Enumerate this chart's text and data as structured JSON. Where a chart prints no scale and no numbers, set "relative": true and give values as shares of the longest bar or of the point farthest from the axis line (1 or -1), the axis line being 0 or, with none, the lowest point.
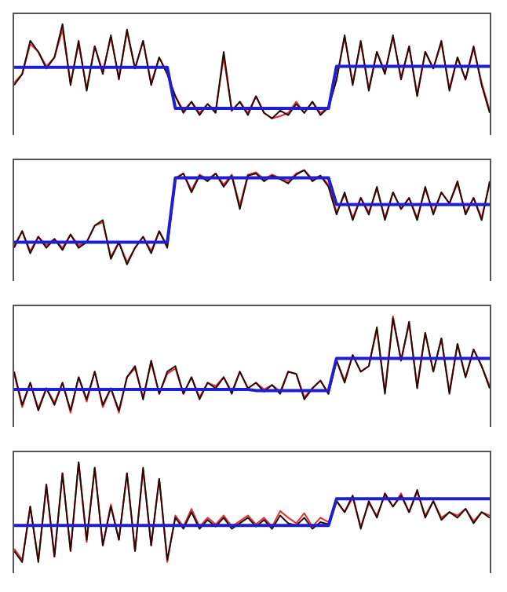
{
  "chart_data": [
    {
      "type": "line",
      "relative": true,
      "tick_labels": false,
      "marker": "none",
      "line_style": "solid",
      "categories": [
        null,
        null,
        null,
        null,
        null,
        null,
        null,
        null,
        null,
        null,
        null,
        null,
        null,
        null,
        null,
        null,
        null,
        null,
        null,
        null,
        null,
        null,
        null,
        null,
        null,
        null,
        null,
        null,
        null,
        null,
        null,
        null,
        null,
        null,
        null,
        null,
        null,
        null,
        null,
        null,
        null,
        null,
        null,
        null,
        null,
        null,
        null,
        null,
        null,
        null,
        null,
        null,
        null,
        null,
        null,
        null,
        null,
        null,
        null,
        null
      ],
      "series": [
        {
          "color": "#e03030",
          "values": [
            0.47,
            0.55,
            0.82,
            0.75,
            0.62,
            0.7,
            0.95,
            0.47,
            0.82,
            0.42,
            0.8,
            0.57,
            0.88,
            0.52,
            0.93,
            0.6,
            0.85,
            0.47,
            0.7,
            0.55,
            0.35,
            0.22,
            0.3,
            0.2,
            0.28,
            0.22,
            0.7,
            0.22,
            0.3,
            0.2,
            0.35,
            0.2,
            0.15,
            0.17,
            0.2,
            0.3,
            0.2,
            0.3,
            0.2,
            0.25,
            0.5,
            0.88,
            0.47,
            0.83,
            0.42,
            0.75,
            0.57,
            0.88,
            0.52,
            0.8,
            0.37,
            0.75,
            0.6,
            0.83,
            0.42,
            0.7,
            0.5,
            0.78,
            0.47,
            0.22
          ]
        },
        {
          "color": "#2a0808",
          "values": [
            0.45,
            0.55,
            0.85,
            0.75,
            0.6,
            0.7,
            1.0,
            0.45,
            0.85,
            0.4,
            0.8,
            0.55,
            0.9,
            0.5,
            0.95,
            0.6,
            0.85,
            0.45,
            0.7,
            0.55,
            0.35,
            0.2,
            0.3,
            0.18,
            0.28,
            0.2,
            0.75,
            0.22,
            0.3,
            0.18,
            0.35,
            0.2,
            0.15,
            0.22,
            0.18,
            0.28,
            0.2,
            0.3,
            0.18,
            0.25,
            0.5,
            0.9,
            0.45,
            0.85,
            0.4,
            0.75,
            0.55,
            0.9,
            0.5,
            0.8,
            0.35,
            0.75,
            0.6,
            0.85,
            0.4,
            0.7,
            0.5,
            0.8,
            0.45,
            0.2
          ]
        },
        {
          "color": "#1f1fd0",
          "values": [
            0.61,
            0.61,
            0.61,
            0.61,
            0.61,
            0.61,
            0.61,
            0.61,
            0.61,
            0.61,
            0.61,
            0.61,
            0.61,
            0.61,
            0.61,
            0.61,
            0.61,
            0.61,
            0.61,
            0.61,
            0.24,
            0.24,
            0.24,
            0.24,
            0.24,
            0.24,
            0.24,
            0.24,
            0.24,
            0.24,
            0.24,
            0.24,
            0.24,
            0.24,
            0.24,
            0.24,
            0.24,
            0.24,
            0.24,
            0.24,
            0.62,
            0.62,
            0.62,
            0.62,
            0.62,
            0.62,
            0.62,
            0.62,
            0.62,
            0.62,
            0.62,
            0.62,
            0.62,
            0.62,
            0.62,
            0.62,
            0.62,
            0.62,
            0.62,
            0.62
          ]
        }
      ]
    },
    {
      "type": "line",
      "relative": true,
      "tick_labels": false,
      "marker": "none",
      "line_style": "solid",
      "categories": [
        null,
        null,
        null,
        null,
        null,
        null,
        null,
        null,
        null,
        null,
        null,
        null,
        null,
        null,
        null,
        null,
        null,
        null,
        null,
        null,
        null,
        null,
        null,
        null,
        null,
        null,
        null,
        null,
        null,
        null,
        null,
        null,
        null,
        null,
        null,
        null,
        null,
        null,
        null,
        null,
        null,
        null,
        null,
        null,
        null,
        null,
        null,
        null,
        null,
        null,
        null,
        null,
        null,
        null,
        null,
        null,
        null,
        null,
        null,
        null
      ],
      "series": [
        {
          "color": "#e03030",
          "values": [
            0.32,
            0.45,
            0.27,
            0.4,
            0.32,
            0.38,
            0.3,
            0.42,
            0.32,
            0.35,
            0.5,
            0.53,
            0.22,
            0.35,
            0.17,
            0.3,
            0.4,
            0.27,
            0.45,
            0.32,
            0.93,
            0.97,
            0.82,
            0.96,
            0.92,
            0.97,
            0.87,
            0.96,
            0.68,
            0.96,
            0.98,
            0.92,
            0.96,
            0.93,
            0.9,
            0.97,
            1.0,
            0.92,
            0.95,
            0.87,
            0.62,
            0.78,
            0.57,
            0.75,
            0.62,
            0.83,
            0.57,
            0.8,
            0.65,
            0.75,
            0.57,
            0.83,
            0.62,
            0.8,
            0.7,
            0.88,
            0.62,
            0.75,
            0.57,
            0.88
          ]
        },
        {
          "color": "#2a0808",
          "values": [
            0.3,
            0.45,
            0.25,
            0.4,
            0.3,
            0.38,
            0.28,
            0.42,
            0.3,
            0.35,
            0.5,
            0.55,
            0.2,
            0.35,
            0.15,
            0.3,
            0.4,
            0.25,
            0.45,
            0.3,
            0.92,
            0.97,
            0.8,
            0.95,
            0.9,
            0.97,
            0.85,
            0.95,
            0.65,
            0.95,
            0.97,
            0.9,
            0.95,
            0.92,
            0.88,
            0.96,
            1.0,
            0.9,
            0.95,
            0.85,
            0.6,
            0.8,
            0.55,
            0.75,
            0.6,
            0.85,
            0.55,
            0.8,
            0.65,
            0.75,
            0.55,
            0.85,
            0.6,
            0.8,
            0.7,
            0.9,
            0.6,
            0.75,
            0.55,
            0.9
          ]
        },
        {
          "color": "#1f1fd0",
          "values": [
            0.35,
            0.35,
            0.35,
            0.35,
            0.35,
            0.35,
            0.35,
            0.35,
            0.35,
            0.35,
            0.35,
            0.35,
            0.35,
            0.35,
            0.35,
            0.35,
            0.35,
            0.35,
            0.35,
            0.35,
            0.93,
            0.93,
            0.93,
            0.93,
            0.93,
            0.93,
            0.93,
            0.93,
            0.93,
            0.93,
            0.93,
            0.93,
            0.93,
            0.93,
            0.93,
            0.93,
            0.93,
            0.93,
            0.93,
            0.93,
            0.69,
            0.69,
            0.69,
            0.69,
            0.69,
            0.69,
            0.69,
            0.69,
            0.69,
            0.69,
            0.69,
            0.69,
            0.69,
            0.69,
            0.69,
            0.69,
            0.69,
            0.69,
            0.69,
            0.69
          ]
        }
      ]
    },
    {
      "type": "line",
      "relative": true,
      "tick_labels": false,
      "marker": "none",
      "line_style": "solid",
      "categories": [
        null,
        null,
        null,
        null,
        null,
        null,
        null,
        null,
        null,
        null,
        null,
        null,
        null,
        null,
        null,
        null,
        null,
        null,
        null,
        null,
        null,
        null,
        null,
        null,
        null,
        null,
        null,
        null,
        null,
        null,
        null,
        null,
        null,
        null,
        null,
        null,
        null,
        null,
        null,
        null,
        null,
        null,
        null,
        null,
        null,
        null,
        null,
        null,
        null,
        null,
        null,
        null,
        null,
        null,
        null,
        null,
        null,
        null,
        null,
        null
      ],
      "series": [
        {
          "color": "#e03030",
          "values": [
            0.48,
            0.18,
            0.4,
            0.17,
            0.35,
            0.22,
            0.4,
            0.13,
            0.45,
            0.23,
            0.5,
            0.18,
            0.35,
            0.13,
            0.45,
            0.53,
            0.27,
            0.58,
            0.3,
            0.48,
            0.53,
            0.3,
            0.45,
            0.27,
            0.4,
            0.37,
            0.45,
            0.32,
            0.5,
            0.35,
            0.4,
            0.34,
            0.38,
            0.32,
            0.5,
            0.48,
            0.27,
            0.35,
            0.42,
            0.3,
            0.6,
            0.42,
            0.65,
            0.5,
            0.55,
            0.88,
            0.32,
            1.0,
            0.6,
            0.93,
            0.37,
            0.85,
            0.5,
            0.8,
            0.32,
            0.75,
            0.45,
            0.7,
            0.55,
            0.37
          ]
        },
        {
          "color": "#2a0808",
          "values": [
            0.5,
            0.2,
            0.4,
            0.15,
            0.35,
            0.2,
            0.4,
            0.15,
            0.45,
            0.25,
            0.5,
            0.2,
            0.35,
            0.15,
            0.45,
            0.55,
            0.25,
            0.6,
            0.3,
            0.5,
            0.55,
            0.3,
            0.45,
            0.25,
            0.4,
            0.35,
            0.45,
            0.3,
            0.5,
            0.35,
            0.4,
            0.32,
            0.38,
            0.3,
            0.5,
            0.48,
            0.25,
            0.35,
            0.42,
            0.3,
            0.6,
            0.4,
            0.65,
            0.5,
            0.55,
            0.9,
            0.3,
            0.98,
            0.6,
            0.95,
            0.35,
            0.85,
            0.5,
            0.8,
            0.3,
            0.75,
            0.45,
            0.7,
            0.55,
            0.35
          ]
        },
        {
          "color": "#1f1fd0",
          "values": [
            0.34,
            0.34,
            0.34,
            0.34,
            0.34,
            0.34,
            0.34,
            0.34,
            0.34,
            0.34,
            0.34,
            0.34,
            0.34,
            0.34,
            0.34,
            0.34,
            0.34,
            0.34,
            0.34,
            0.34,
            0.34,
            0.34,
            0.34,
            0.34,
            0.34,
            0.34,
            0.34,
            0.34,
            0.34,
            0.34,
            0.33,
            0.33,
            0.33,
            0.33,
            0.33,
            0.33,
            0.33,
            0.33,
            0.33,
            0.33,
            0.62,
            0.62,
            0.62,
            0.62,
            0.62,
            0.62,
            0.62,
            0.62,
            0.62,
            0.62,
            0.62,
            0.62,
            0.62,
            0.62,
            0.62,
            0.62,
            0.62,
            0.62,
            0.62,
            0.62
          ]
        }
      ]
    },
    {
      "type": "line",
      "relative": true,
      "tick_labels": false,
      "marker": "none",
      "line_style": "solid",
      "categories": [
        null,
        null,
        null,
        null,
        null,
        null,
        null,
        null,
        null,
        null,
        null,
        null,
        null,
        null,
        null,
        null,
        null,
        null,
        null,
        null,
        null,
        null,
        null,
        null,
        null,
        null,
        null,
        null,
        null,
        null,
        null,
        null,
        null,
        null,
        null,
        null,
        null,
        null,
        null,
        null,
        null,
        null,
        null,
        null,
        null,
        null,
        null,
        null,
        null,
        null,
        null,
        null,
        null,
        null,
        null,
        null,
        null,
        null,
        null,
        null
      ],
      "series": [
        {
          "color": "#e03030",
          "values": [
            0.22,
            0.12,
            0.6,
            0.12,
            0.78,
            0.15,
            0.9,
            0.2,
            1.0,
            0.28,
            0.95,
            0.25,
            0.62,
            0.3,
            0.9,
            0.2,
            0.93,
            0.25,
            0.85,
            0.1,
            0.52,
            0.42,
            0.58,
            0.42,
            0.5,
            0.44,
            0.52,
            0.42,
            0.47,
            0.52,
            0.44,
            0.5,
            0.42,
            0.56,
            0.5,
            0.45,
            0.54,
            0.42,
            0.5,
            0.46,
            0.65,
            0.55,
            0.68,
            0.42,
            0.63,
            0.52,
            0.7,
            0.6,
            0.72,
            0.55,
            0.73,
            0.52,
            0.65,
            0.5,
            0.55,
            0.52,
            0.58,
            0.47,
            0.55,
            0.52
          ]
        },
        {
          "color": "#2a0808",
          "values": [
            0.2,
            0.1,
            0.6,
            0.1,
            0.8,
            0.15,
            0.9,
            0.2,
            1.0,
            0.3,
            0.95,
            0.25,
            0.6,
            0.3,
            0.9,
            0.2,
            0.95,
            0.25,
            0.85,
            0.12,
            0.5,
            0.4,
            0.55,
            0.4,
            0.48,
            0.42,
            0.5,
            0.4,
            0.45,
            0.5,
            0.42,
            0.48,
            0.4,
            0.52,
            0.45,
            0.43,
            0.5,
            0.4,
            0.46,
            0.44,
            0.65,
            0.55,
            0.7,
            0.4,
            0.65,
            0.5,
            0.72,
            0.6,
            0.7,
            0.55,
            0.75,
            0.5,
            0.65,
            0.48,
            0.55,
            0.5,
            0.58,
            0.45,
            0.55,
            0.5
          ]
        },
        {
          "color": "#1f1fd0",
          "values": [
            0.43,
            0.43,
            0.43,
            0.43,
            0.43,
            0.43,
            0.43,
            0.43,
            0.43,
            0.43,
            0.43,
            0.43,
            0.43,
            0.43,
            0.43,
            0.43,
            0.43,
            0.43,
            0.43,
            0.43,
            0.43,
            0.43,
            0.43,
            0.43,
            0.43,
            0.43,
            0.43,
            0.43,
            0.43,
            0.43,
            0.43,
            0.43,
            0.43,
            0.43,
            0.43,
            0.43,
            0.43,
            0.43,
            0.43,
            0.43,
            0.67,
            0.67,
            0.67,
            0.67,
            0.67,
            0.67,
            0.67,
            0.67,
            0.67,
            0.67,
            0.67,
            0.67,
            0.67,
            0.67,
            0.67,
            0.67,
            0.67,
            0.67,
            0.67,
            0.67
          ]
        }
      ]
    }
  ]
}
